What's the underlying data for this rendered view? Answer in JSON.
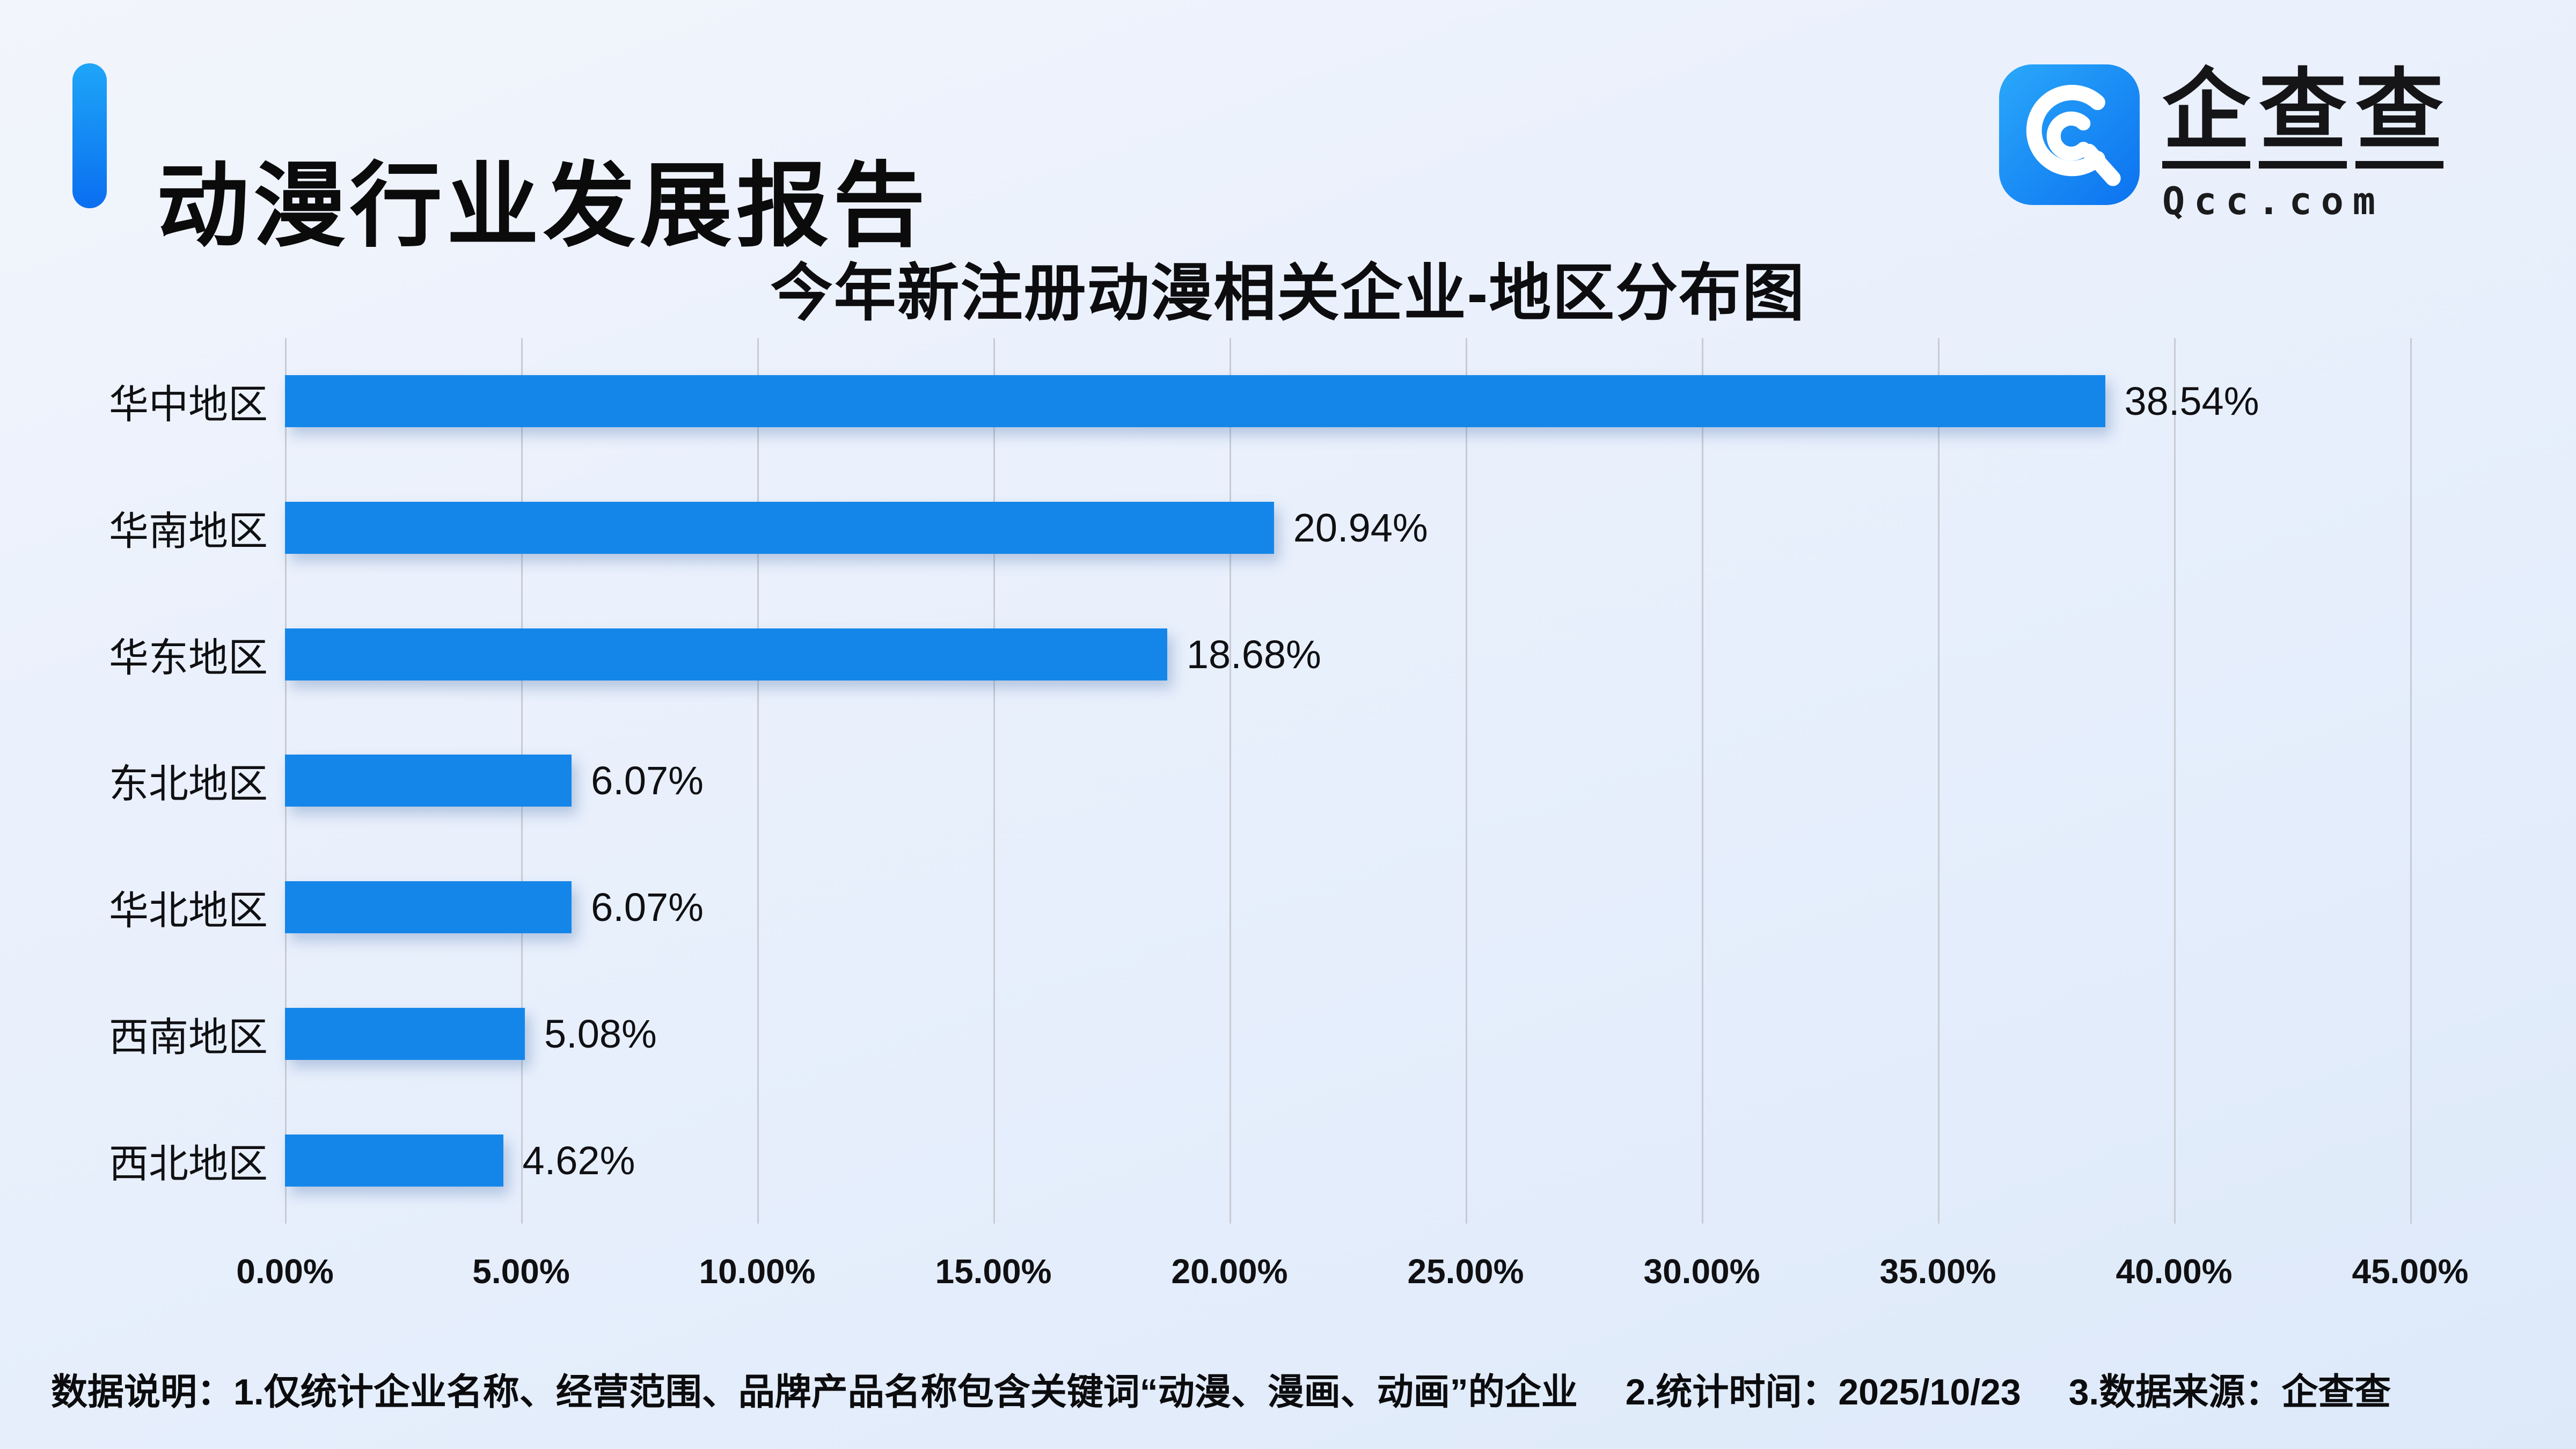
{
  "header": {
    "title": "动漫行业发展报告",
    "logo": {
      "name": "企查查",
      "domain": "Qcc.com"
    }
  },
  "chart_data": {
    "type": "bar",
    "orientation": "horizontal",
    "title": "今年新注册动漫相关企业-地区分布图",
    "categories": [
      "华中地区",
      "华南地区",
      "华东地区",
      "东北地区",
      "华北地区",
      "西南地区",
      "西北地区"
    ],
    "values": [
      38.54,
      20.94,
      18.68,
      6.07,
      6.07,
      5.08,
      4.62
    ],
    "value_labels": [
      "38.54%",
      "20.94%",
      "18.68%",
      "6.07%",
      "6.07%",
      "5.08%",
      "4.62%"
    ],
    "xlabel": "",
    "ylabel": "",
    "xlim": [
      0,
      45
    ],
    "x_tick_step": 5,
    "x_ticks": [
      "0.00%",
      "5.00%",
      "10.00%",
      "15.00%",
      "20.00%",
      "25.00%",
      "30.00%",
      "35.00%",
      "40.00%",
      "45.00%"
    ],
    "grid": "vertical",
    "legend": "none"
  },
  "colors": {
    "bar": "#1586e9",
    "accent_top": "#1ea6f8",
    "accent_bottom": "#0a6ef0",
    "gridline": "#c8cbd2",
    "text": "#0c0c0e"
  },
  "footnote": {
    "text_1": "数据说明：1.仅统计企业名称、经营范围、品牌产品名称包含关键词“动漫、漫画、动画”的企业",
    "text_2": "2.统计时间：2025/10/23",
    "text_3": "3.数据来源：企查查"
  }
}
